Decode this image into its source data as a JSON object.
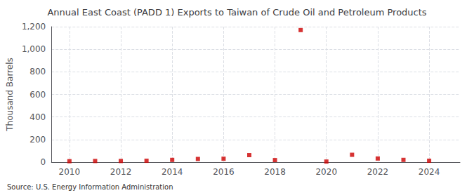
{
  "chart_data": {
    "type": "scatter",
    "title": "Annual East Coast (PADD 1) Exports to Taiwan of Crude Oil and Petroleum Products",
    "ylabel": "Thousand Barrels",
    "annotations": [
      "Source: U.S. Energy Information Administration"
    ],
    "x": [
      2010,
      2011,
      2012,
      2013,
      2014,
      2015,
      2016,
      2017,
      2018,
      2019,
      2020,
      2021,
      2022,
      2023,
      2024
    ],
    "values": [
      8,
      10,
      10,
      12,
      20,
      28,
      30,
      62,
      18,
      1170,
      5,
      65,
      32,
      20,
      12
    ],
    "color": "#cc0000",
    "marker": "square",
    "xlim": [
      2009.3,
      2025.2
    ],
    "xticks": [
      2010,
      2012,
      2014,
      2016,
      2018,
      2020,
      2022,
      2024
    ],
    "ylim": [
      0,
      1200
    ],
    "yticks": [
      0,
      200,
      400,
      600,
      800,
      {
        "value": 1000,
        "label": "1,000"
      },
      {
        "value": 1200,
        "label": "1,200"
      }
    ],
    "grid": true
  }
}
